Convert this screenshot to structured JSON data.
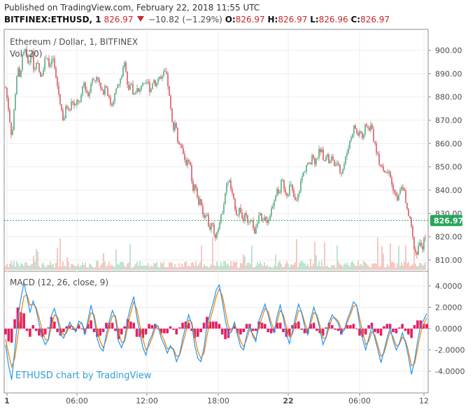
{
  "header": {
    "published": "Published on TradingView.com, February 22, 2018 11:55 UTC",
    "symbol": "BITFINEX:ETHUSD, 1",
    "last": "826.97",
    "change": "−10.82 (−1.29%)",
    "o_label": "O:",
    "o_value": "826.97",
    "h_label": "H:",
    "h_value": "826.97",
    "l_label": "L:",
    "l_value": "826.96",
    "c_label": "C:",
    "c_value": "826.97"
  },
  "colors": {
    "up": "#3d9e6e",
    "down": "#d2414a",
    "macd_line": "#2196f3",
    "signal_line": "#f57c00",
    "histogram": "#e91e63",
    "price_line": "#26a65b",
    "watermark": "#2f9fd6"
  },
  "chart_data": [
    {
      "type": "candlestick",
      "title": "Ethereum / Dollar, 1, BITFINEX",
      "volume_label": "Vol (20)",
      "ylim": [
        805,
        908
      ],
      "y_ticks": [
        "900.00",
        "890.00",
        "880.00",
        "870.00",
        "860.00",
        "850.00",
        "840.00",
        "830.00",
        "820.00",
        "810.00"
      ],
      "x_ticks": [
        "1",
        "06:00",
        "12:00",
        "18:00",
        "22",
        "06:00",
        "12"
      ],
      "last_price": 826.97,
      "last_price_label": "826.97",
      "watermark": "ETHUSD chart by TradingView",
      "price_path": [
        [
          0,
          884
        ],
        [
          4,
          875
        ],
        [
          9,
          862
        ],
        [
          13,
          878
        ],
        [
          17,
          893
        ],
        [
          20,
          888
        ],
        [
          24,
          897
        ],
        [
          28,
          900
        ],
        [
          33,
          893
        ],
        [
          37,
          901
        ],
        [
          41,
          890
        ],
        [
          45,
          895
        ],
        [
          50,
          888
        ],
        [
          54,
          893
        ],
        [
          59,
          899
        ],
        [
          63,
          891
        ],
        [
          67,
          898
        ],
        [
          71,
          890
        ],
        [
          75,
          883
        ],
        [
          79,
          876
        ],
        [
          83,
          869
        ],
        [
          87,
          877
        ],
        [
          91,
          873
        ],
        [
          95,
          879
        ],
        [
          99,
          875
        ],
        [
          103,
          879
        ],
        [
          107,
          877
        ],
        [
          111,
          887
        ],
        [
          115,
          883
        ],
        [
          119,
          880
        ],
        [
          123,
          889
        ],
        [
          127,
          886
        ],
        [
          131,
          890
        ],
        [
          135,
          884
        ],
        [
          139,
          881
        ],
        [
          143,
          886
        ],
        [
          147,
          880
        ],
        [
          151,
          876
        ],
        [
          155,
          880
        ],
        [
          159,
          884
        ],
        [
          163,
          886
        ],
        [
          167,
          891
        ],
        [
          171,
          895
        ],
        [
          175,
          883
        ],
        [
          179,
          886
        ],
        [
          183,
          880
        ],
        [
          187,
          884
        ],
        [
          191,
          881
        ],
        [
          195,
          887
        ],
        [
          199,
          884
        ],
        [
          203,
          887
        ],
        [
          207,
          882
        ],
        [
          211,
          888
        ],
        [
          215,
          885
        ],
        [
          219,
          889
        ],
        [
          223,
          887
        ],
        [
          227,
          891
        ],
        [
          231,
          888
        ],
        [
          235,
          877
        ],
        [
          239,
          866
        ],
        [
          243,
          870
        ],
        [
          247,
          858
        ],
        [
          251,
          861
        ],
        [
          255,
          854
        ],
        [
          259,
          851
        ],
        [
          263,
          854
        ],
        [
          267,
          840
        ],
        [
          271,
          843
        ],
        [
          275,
          834
        ],
        [
          279,
          836
        ],
        [
          283,
          828
        ],
        [
          287,
          831
        ],
        [
          291,
          823
        ],
        [
          295,
          826
        ],
        [
          299,
          819
        ],
        [
          303,
          824
        ],
        [
          307,
          827
        ],
        [
          311,
          833
        ],
        [
          315,
          841
        ],
        [
          319,
          845
        ],
        [
          323,
          839
        ],
        [
          327,
          834
        ],
        [
          331,
          829
        ],
        [
          335,
          833
        ],
        [
          339,
          826
        ],
        [
          343,
          830
        ],
        [
          347,
          824
        ],
        [
          351,
          829
        ],
        [
          355,
          821
        ],
        [
          359,
          826
        ],
        [
          363,
          830
        ],
        [
          367,
          825
        ],
        [
          371,
          829
        ],
        [
          375,
          826
        ],
        [
          379,
          831
        ],
        [
          383,
          835
        ],
        [
          387,
          840
        ],
        [
          391,
          838
        ],
        [
          395,
          845
        ],
        [
          399,
          840
        ],
        [
          403,
          838
        ],
        [
          407,
          843
        ],
        [
          411,
          838
        ],
        [
          415,
          834
        ],
        [
          419,
          839
        ],
        [
          423,
          845
        ],
        [
          427,
          848
        ],
        [
          431,
          852
        ],
        [
          435,
          850
        ],
        [
          439,
          855
        ],
        [
          443,
          851
        ],
        [
          447,
          856
        ],
        [
          451,
          858
        ],
        [
          455,
          853
        ],
        [
          459,
          856
        ],
        [
          463,
          851
        ],
        [
          467,
          855
        ],
        [
          471,
          849
        ],
        [
          475,
          853
        ],
        [
          479,
          847
        ],
        [
          483,
          850
        ],
        [
          487,
          855
        ],
        [
          491,
          860
        ],
        [
          495,
          864
        ],
        [
          499,
          868
        ],
        [
          503,
          863
        ],
        [
          507,
          866
        ],
        [
          511,
          861
        ],
        [
          515,
          869
        ],
        [
          519,
          866
        ],
        [
          523,
          868
        ],
        [
          527,
          860
        ],
        [
          531,
          856
        ],
        [
          535,
          851
        ],
        [
          539,
          850
        ],
        [
          543,
          846
        ],
        [
          547,
          848
        ],
        [
          551,
          843
        ],
        [
          555,
          840
        ],
        [
          559,
          836
        ],
        [
          563,
          838
        ],
        [
          567,
          843
        ],
        [
          571,
          837
        ],
        [
          575,
          830
        ],
        [
          579,
          826
        ],
        [
          583,
          817
        ],
        [
          587,
          812
        ],
        [
          591,
          818
        ],
        [
          595,
          814
        ],
        [
          599,
          820
        ],
        [
          603,
          821
        ],
        [
          607,
          827
        ]
      ]
    },
    {
      "type": "line",
      "title": "MACD (12, 26, close, 9)",
      "ylim": [
        -5.2,
        4.8
      ],
      "y_ticks": [
        "4.0000",
        "2.0000",
        "0.0000",
        "-2.0000",
        "-4.0000"
      ],
      "series": [
        {
          "name": "MACD",
          "values": [
            -1.5,
            -3.5,
            -4.8,
            -2.0,
            1.0,
            2.8,
            4.3,
            3.0,
            1.5,
            2.6,
            1.8,
            0.4,
            -0.8,
            -1.5,
            -1.0,
            1.2,
            1.9,
            0.8,
            -0.5,
            -0.9,
            -0.2,
            0.6,
            0.1,
            -0.3,
            0.7,
            0.5,
            -0.6,
            0.8,
            2.2,
            1.0,
            -0.9,
            -1.8,
            -2.1,
            -0.5,
            0.7,
            1.7,
            1.0,
            -1.2,
            -1.8,
            -1.0,
            0.9,
            2.1,
            3.0,
            1.1,
            -0.4,
            -1.8,
            -2.5,
            -1.2,
            -0.6,
            0.4,
            0.2,
            -0.9,
            -1.5,
            -2.3,
            -1.6,
            -2.0,
            -3.1,
            -2.4,
            -1.0,
            0.2,
            1.3,
            0.4,
            -1.6,
            -2.8,
            -3.1,
            -1.8,
            0.3,
            1.4,
            2.4,
            3.6,
            4.1,
            2.6,
            0.8,
            -0.6,
            -0.3,
            0.6,
            -0.6,
            -1.7,
            -2.0,
            -0.6,
            0.3,
            -0.7,
            -1.2,
            0.7,
            1.5,
            2.3,
            1.3,
            0.2,
            -0.4,
            1.2,
            2.2,
            1.0,
            -0.5,
            -1.4,
            -0.2,
            1.1,
            2.3,
            1.5,
            0.2,
            -0.6,
            0.9,
            2.0,
            1.1,
            -0.1,
            -1.5,
            -0.8,
            0.6,
            1.3,
            0.9,
            0.5,
            -0.5,
            -0.1,
            0.9,
            1.6,
            2.5,
            2.2,
            0.4,
            -1.0,
            -2.0,
            -0.9,
            0.2,
            -0.9,
            -2.0,
            -3.2,
            -2.1,
            -0.9,
            0.1,
            -1.1,
            -2.0,
            -1.4,
            -0.4,
            -1.3,
            -2.6,
            -4.3,
            -3.0,
            -1.2,
            0.3,
            0.8,
            1.4
          ]
        },
        {
          "name": "Signal",
          "values": [
            -1.0,
            -2.4,
            -3.6,
            -2.8,
            -0.8,
            1.4,
            3.0,
            3.2,
            2.2,
            2.3,
            2.0,
            1.0,
            -0.1,
            -1.0,
            -1.1,
            0.2,
            1.3,
            1.1,
            0.1,
            -0.6,
            -0.4,
            0.3,
            0.2,
            -0.1,
            0.4,
            0.5,
            -0.2,
            0.4,
            1.5,
            1.3,
            -0.2,
            -1.2,
            -1.8,
            -1.0,
            0.2,
            1.2,
            1.2,
            -0.3,
            -1.3,
            -1.2,
            0.1,
            1.5,
            2.5,
            1.8,
            0.3,
            -1.0,
            -2.0,
            -1.6,
            -0.9,
            0.0,
            0.2,
            -0.5,
            -1.1,
            -1.9,
            -1.8,
            -1.9,
            -2.6,
            -2.5,
            -1.5,
            -0.4,
            0.8,
            0.6,
            -0.8,
            -2.1,
            -2.8,
            -2.3,
            -0.7,
            0.8,
            1.8,
            3.0,
            3.7,
            3.1,
            1.7,
            0.2,
            -0.3,
            0.3,
            -0.2,
            -1.2,
            -1.7,
            -1.0,
            -0.1,
            -0.5,
            -1.0,
            0.1,
            1.0,
            1.9,
            1.6,
            0.6,
            -0.1,
            0.7,
            1.7,
            1.3,
            0.2,
            -0.8,
            -0.5,
            0.6,
            1.7,
            1.6,
            0.6,
            -0.2,
            0.5,
            1.5,
            1.3,
            0.3,
            -0.9,
            -0.9,
            0.1,
            1.0,
            1.0,
            0.7,
            0.0,
            -0.1,
            0.6,
            1.3,
            2.1,
            2.2,
            1.0,
            -0.3,
            -1.5,
            -1.2,
            -0.3,
            -0.6,
            -1.6,
            -2.6,
            -2.3,
            -1.3,
            -0.3,
            -0.8,
            -1.6,
            -1.5,
            -0.8,
            -1.1,
            -2.1,
            -3.5,
            -3.3,
            -1.9,
            -0.4,
            0.4,
            1.0
          ]
        }
      ]
    }
  ]
}
